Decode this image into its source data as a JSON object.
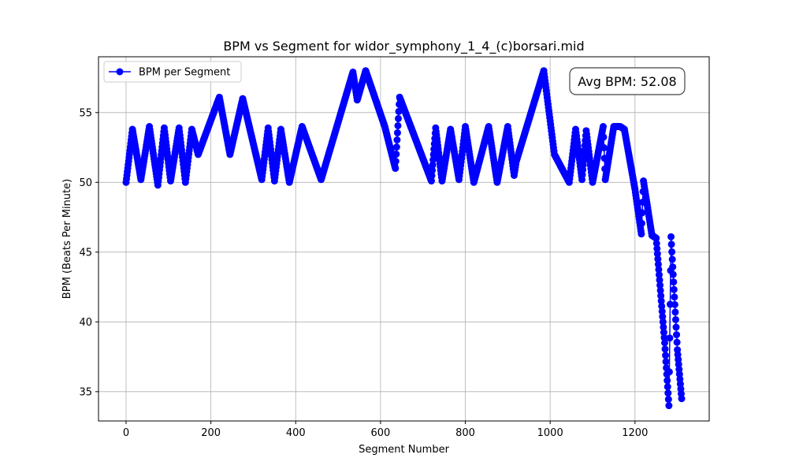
{
  "chart_data": {
    "type": "line",
    "title": "BPM vs Segment for widor_symphony_1_4_(c)borsari.mid",
    "xlabel": "Segment Number",
    "ylabel": "BPM (Beats Per Minute)",
    "xlim": [
      -65,
      1375
    ],
    "ylim": [
      32.9,
      59.0
    ],
    "xticks": [
      0,
      200,
      400,
      600,
      800,
      1000,
      1200
    ],
    "yticks": [
      35,
      40,
      45,
      50,
      55
    ],
    "grid": true,
    "legend_position": "top-left",
    "series": [
      {
        "name": "BPM per Segment",
        "color": "#0000ff",
        "marker": "circle",
        "keypoints": [
          [
            0,
            50.0
          ],
          [
            15,
            53.8
          ],
          [
            35,
            50.2
          ],
          [
            55,
            54.0
          ],
          [
            75,
            49.8
          ],
          [
            90,
            53.9
          ],
          [
            105,
            50.1
          ],
          [
            125,
            53.9
          ],
          [
            140,
            50.0
          ],
          [
            155,
            53.8
          ],
          [
            170,
            52.0
          ],
          [
            220,
            56.1
          ],
          [
            245,
            52.0
          ],
          [
            275,
            56.0
          ],
          [
            320,
            50.2
          ],
          [
            335,
            53.9
          ],
          [
            350,
            50.1
          ],
          [
            365,
            53.8
          ],
          [
            385,
            50.0
          ],
          [
            415,
            54.0
          ],
          [
            460,
            50.2
          ],
          [
            535,
            57.9
          ],
          [
            545,
            55.9
          ],
          [
            565,
            58.0
          ],
          [
            610,
            54.0
          ],
          [
            635,
            51.0
          ],
          [
            645,
            56.1
          ],
          [
            720,
            50.1
          ],
          [
            730,
            53.9
          ],
          [
            745,
            50.1
          ],
          [
            765,
            53.8
          ],
          [
            785,
            50.2
          ],
          [
            800,
            54.0
          ],
          [
            820,
            50.0
          ],
          [
            855,
            54.0
          ],
          [
            875,
            50.0
          ],
          [
            900,
            54.0
          ],
          [
            915,
            50.5
          ],
          [
            920,
            51.5
          ],
          [
            985,
            58.0
          ],
          [
            1010,
            52.0
          ],
          [
            1045,
            50.0
          ],
          [
            1060,
            53.8
          ],
          [
            1075,
            50.2
          ],
          [
            1085,
            53.7
          ],
          [
            1100,
            50.0
          ],
          [
            1125,
            54.0
          ],
          [
            1130,
            50.2
          ],
          [
            1150,
            54.0
          ],
          [
            1165,
            54.0
          ],
          [
            1175,
            53.8
          ],
          [
            1200,
            49.5
          ],
          [
            1215,
            46.3
          ],
          [
            1220,
            50.1
          ],
          [
            1240,
            46.2
          ],
          [
            1250,
            46.0
          ],
          [
            1270,
            38.5
          ],
          [
            1280,
            34.0
          ],
          [
            1285,
            46.1
          ],
          [
            1300,
            38.0
          ],
          [
            1310,
            34.5
          ]
        ]
      }
    ],
    "annotations": [
      {
        "text": "Avg BPM: 52.08",
        "position": "top-right"
      }
    ]
  }
}
